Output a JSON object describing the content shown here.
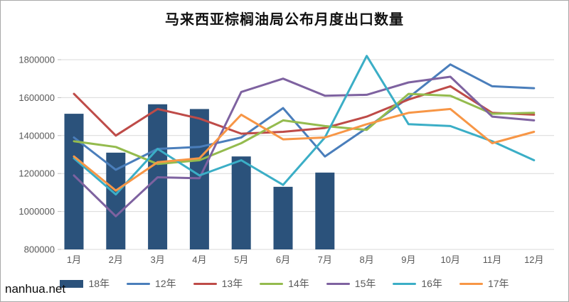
{
  "watermark": "nanhua.net",
  "chart_data": {
    "type": "combo-bar-line",
    "title": "马来西亚棕榈油局公布月度出口数量",
    "categories": [
      "1月",
      "2月",
      "3月",
      "4月",
      "5月",
      "6月",
      "7月",
      "8月",
      "9月",
      "10月",
      "11月",
      "12月"
    ],
    "yticks": [
      "800000",
      "1000000",
      "1200000",
      "1400000",
      "1600000",
      "1800000"
    ],
    "ylim": [
      800000,
      1800000
    ],
    "ytick_step": 200000,
    "grid": true,
    "legend_position": "bottom",
    "grid_color": "#d9d9d9",
    "axis_text_color": "#595959",
    "series": [
      {
        "name": "18年",
        "type": "bar",
        "color": "#2b527b",
        "values": [
          1515000,
          1310000,
          1565000,
          1540000,
          1290000,
          1130000,
          1205000,
          null,
          null,
          null,
          null,
          null
        ]
      },
      {
        "name": "12年",
        "type": "line",
        "color": "#4a7ebb",
        "values": [
          1390000,
          1220000,
          1330000,
          1340000,
          1390000,
          1545000,
          1290000,
          1440000,
          1600000,
          1775000,
          1660000,
          1650000
        ]
      },
      {
        "name": "13年",
        "type": "line",
        "color": "#be4b48",
        "values": [
          1620000,
          1400000,
          1540000,
          1490000,
          1410000,
          1420000,
          1440000,
          1500000,
          1590000,
          1660000,
          1520000,
          1510000
        ]
      },
      {
        "name": "14年",
        "type": "line",
        "color": "#94bb4e",
        "values": [
          1370000,
          1340000,
          1250000,
          1270000,
          1360000,
          1480000,
          1450000,
          1430000,
          1620000,
          1610000,
          1515000,
          1520000
        ]
      },
      {
        "name": "15年",
        "type": "line",
        "color": "#7e62a0",
        "values": [
          1190000,
          975000,
          1180000,
          1175000,
          1630000,
          1700000,
          1610000,
          1615000,
          1680000,
          1710000,
          1500000,
          1480000
        ]
      },
      {
        "name": "16年",
        "type": "line",
        "color": "#3baec6",
        "values": [
          1280000,
          1090000,
          1330000,
          1190000,
          1270000,
          1140000,
          1390000,
          1820000,
          1460000,
          1450000,
          1370000,
          1270000
        ]
      },
      {
        "name": "17年",
        "type": "line",
        "color": "#f79646",
        "values": [
          1290000,
          1110000,
          1260000,
          1280000,
          1510000,
          1380000,
          1390000,
          1460000,
          1520000,
          1540000,
          1360000,
          1420000
        ]
      }
    ]
  }
}
